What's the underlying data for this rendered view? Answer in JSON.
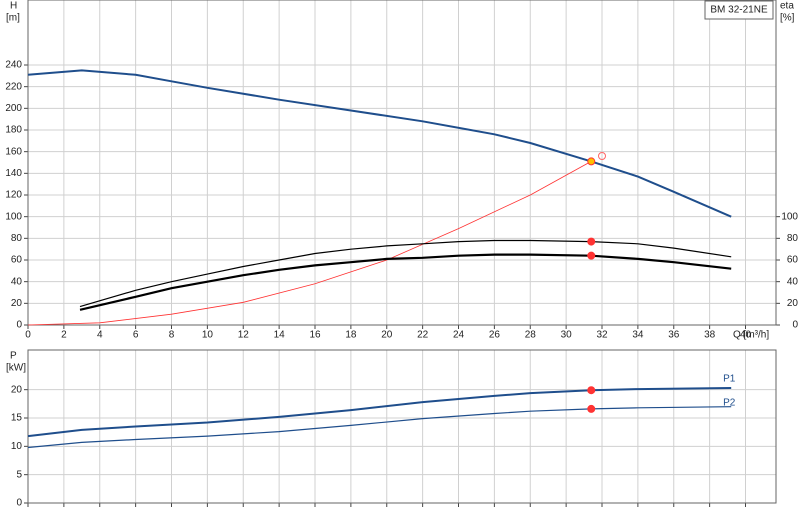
{
  "chart_data": [
    {
      "type": "line",
      "title": "BM 32-21NE",
      "x_label": "Q [m³/h]",
      "y_label": "H",
      "y_unit": "[m]",
      "y2_label": "eta",
      "y2_unit": "[%]",
      "xlim": [
        0,
        41.7
      ],
      "xticks": [
        0,
        2,
        4,
        6,
        8,
        10,
        12,
        14,
        16,
        18,
        20,
        22,
        24,
        26,
        28,
        30,
        32,
        34,
        36,
        38,
        40
      ],
      "ylim": [
        0,
        300
      ],
      "yticks": [
        0,
        20,
        40,
        60,
        80,
        100,
        120,
        140,
        160,
        180,
        200,
        220,
        240
      ],
      "y2lim": [
        0,
        300
      ],
      "y2ticks": [
        0,
        20,
        40,
        60,
        80,
        100
      ],
      "grid": true,
      "series": [
        {
          "color": "#1f4e8c",
          "width": 2,
          "x": [
            0,
            3,
            6,
            8,
            10,
            14,
            18,
            22,
            26,
            28,
            31.4,
            34,
            36,
            39.2
          ],
          "values": [
            231,
            235,
            231,
            225,
            219,
            208,
            198,
            188,
            176,
            168,
            151,
            137,
            123,
            100
          ]
        },
        {
          "color": "#ff3333",
          "width": 0.8,
          "x": [
            0,
            4,
            8,
            12,
            16,
            20,
            24,
            28,
            31.4
          ],
          "values": [
            0,
            2,
            10,
            21,
            38,
            60,
            89,
            120,
            151
          ]
        },
        {
          "color": "#000000",
          "width": 1.2,
          "axis": "y2",
          "x": [
            2.9,
            6,
            8,
            10,
            12,
            14,
            16,
            18,
            20,
            22,
            24,
            26,
            28,
            31.4,
            34,
            36,
            39.2
          ],
          "values": [
            17,
            32,
            40,
            47,
            54,
            60,
            66,
            70,
            73,
            75,
            77,
            78,
            78,
            77,
            75,
            71,
            63
          ]
        },
        {
          "color": "#000000",
          "width": 2.2,
          "axis": "y2",
          "x": [
            2.9,
            6,
            8,
            10,
            12,
            14,
            16,
            18,
            20,
            22,
            24,
            26,
            28,
            31.4,
            34,
            36,
            39.2
          ],
          "values": [
            14,
            26,
            34,
            40,
            46,
            51,
            55,
            58,
            61,
            62,
            64,
            65,
            65,
            64,
            61,
            58,
            52
          ]
        },
        {
          "style": "markers",
          "color": "#ffc000",
          "x": [
            31.4
          ],
          "values": [
            151
          ]
        },
        {
          "style": "markers",
          "color": "#ff3333",
          "axis": "y2",
          "x": [
            31.4,
            31.4
          ],
          "values": [
            77,
            64
          ]
        },
        {
          "style": "hollow",
          "color": "#ff6666",
          "x": [
            32
          ],
          "values": [
            156
          ]
        }
      ]
    },
    {
      "type": "line",
      "y_label": "P",
      "y_unit": "[kW]",
      "xlim": [
        0,
        41.7
      ],
      "ylim": [
        0,
        27
      ],
      "yticks": [
        0,
        5,
        10,
        15,
        20
      ],
      "grid": true,
      "series": [
        {
          "name": "P1",
          "color": "#1f4e8c",
          "width": 2,
          "x": [
            0,
            3,
            6,
            10,
            14,
            18,
            22,
            26,
            28,
            31.4,
            34,
            39.2
          ],
          "values": [
            11.8,
            12.9,
            13.5,
            14.2,
            15.2,
            16.4,
            17.8,
            18.9,
            19.4,
            19.9,
            20.1,
            20.3
          ]
        },
        {
          "name": "P2",
          "color": "#1f4e8c",
          "width": 1.2,
          "x": [
            0,
            3,
            6,
            10,
            14,
            18,
            22,
            26,
            28,
            31.4,
            34,
            39.2
          ],
          "values": [
            9.8,
            10.7,
            11.2,
            11.8,
            12.6,
            13.7,
            14.9,
            15.8,
            16.2,
            16.6,
            16.8,
            17
          ]
        },
        {
          "style": "markers",
          "color": "#ff3333",
          "x": [
            31.4,
            31.4
          ],
          "values": [
            19.9,
            16.6
          ]
        }
      ]
    }
  ]
}
